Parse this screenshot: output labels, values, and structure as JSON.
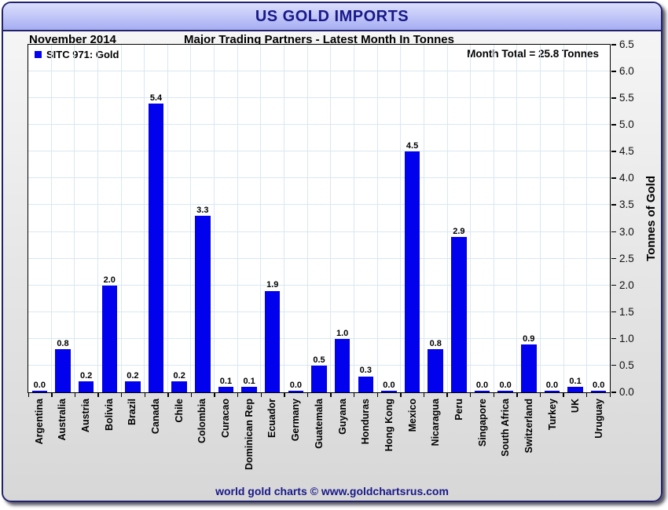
{
  "header": {
    "title": "US GOLD IMPORTS"
  },
  "subheader": {
    "date": "November 2014",
    "subtitle": "Major Trading Partners - Latest Month In Tonnes"
  },
  "legend": {
    "label": "SITC 971: Gold"
  },
  "annotation": {
    "month_total": "Month Total = 25.8 Tonnes"
  },
  "footer": {
    "credit": "world gold charts © www.goldchartsrus.com"
  },
  "colors": {
    "bar": "#0101ee",
    "grid": "#d9e7f3",
    "navy_text": "#191989",
    "header_gradient_top": "#dcdffc",
    "header_gradient_bottom": "#a6aef2"
  },
  "chart_data": {
    "type": "bar",
    "title": "US GOLD IMPORTS",
    "subtitle": "Major Trading Partners - Latest Month In Tonnes",
    "series_name": "SITC 971: Gold",
    "categories": [
      "Argentina",
      "Australia",
      "Austria",
      "Bolivia",
      "Brazil",
      "Canada",
      "Chile",
      "Colombia",
      "Curacao",
      "Dominican Rep",
      "Ecuador",
      "Germany",
      "Guatemala",
      "Guyana",
      "Honduras",
      "Hong Kong",
      "Mexico",
      "Nicaragua",
      "Peru",
      "Singapore",
      "South Africa",
      "Switzerland",
      "Turkey",
      "UK",
      "Uruguay"
    ],
    "values": [
      0.0,
      0.8,
      0.2,
      2.0,
      0.2,
      5.4,
      0.2,
      3.3,
      0.1,
      0.1,
      1.9,
      0.0,
      0.5,
      1.0,
      0.3,
      0.0,
      4.5,
      0.8,
      2.9,
      0.0,
      0.0,
      0.9,
      0.0,
      0.1,
      0.0
    ],
    "value_labels": [
      "0.0",
      "0.8",
      "0.2",
      "2.0",
      "0.2",
      "5.4",
      "0.2",
      "3.3",
      "0.1",
      "0.1",
      "1.9",
      "0.0",
      "0.5",
      "1.0",
      "0.3",
      "0.0",
      "4.5",
      "0.8",
      "2.9",
      "0.0",
      "0.0",
      "0.9",
      "0.0",
      "0.1",
      "0.0"
    ],
    "xlabel": "",
    "ylabel": "Tonnes of Gold",
    "ylim": [
      0,
      6.5
    ],
    "ytick_step": 0.5,
    "yticks": [
      "0.0",
      "0.5",
      "1.0",
      "1.5",
      "2.0",
      "2.5",
      "3.0",
      "3.5",
      "4.0",
      "4.5",
      "5.0",
      "5.5",
      "6.0",
      "6.5"
    ],
    "grid": true,
    "legend_position": "top-left",
    "month_total": 25.8
  }
}
